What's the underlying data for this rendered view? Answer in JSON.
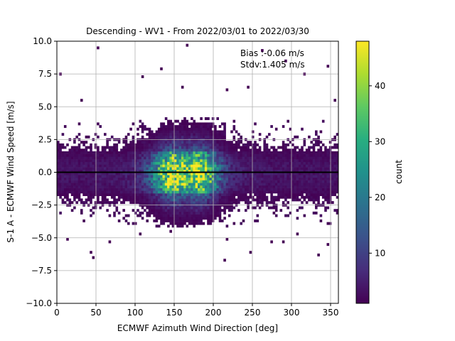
{
  "chart_data": {
    "type": "heatmap",
    "title": "Descending - WV1 - From 2022/03/01 to 2022/03/30",
    "xlabel": "ECMWF Azimuth Wind Direction [deg]",
    "ylabel": "S-1 A - ECMWF Wind Speed [m/s]",
    "xlim": [
      0,
      360
    ],
    "ylim": [
      -10,
      10
    ],
    "x_ticks": [
      0,
      50,
      100,
      150,
      200,
      250,
      300,
      350
    ],
    "y_ticks": [
      -10.0,
      -7.5,
      -5.0,
      -2.5,
      0.0,
      2.5,
      5.0,
      7.5,
      10.0
    ],
    "x_tick_labels": [
      "0",
      "50",
      "100",
      "150",
      "200",
      "250",
      "300",
      "350"
    ],
    "y_tick_labels": [
      "−10.0",
      "−7.5",
      "−5.0",
      "−2.5",
      "0.0",
      "2.5",
      "5.0",
      "7.5",
      "10.0"
    ],
    "grid": true,
    "colormap": "viridis",
    "colorbar": {
      "label": "count",
      "min": 1,
      "max": 48,
      "ticks": [
        10,
        20,
        30,
        40
      ],
      "tick_labels": [
        "10",
        "20",
        "30",
        "40"
      ]
    },
    "annotations": [
      "Bias :-0.06 m/s",
      "Stdv:1.405 m/s"
    ],
    "reference_line": {
      "y": 0.0,
      "color": "#000000"
    },
    "bin_size": {
      "x_deg": 3,
      "y_ms": 0.2
    },
    "density_model": {
      "description": "counts concentrated along y near 0, peak ~48 at 150-190 deg",
      "peak_count": 48,
      "peak_centers_deg": [
        152,
        180
      ],
      "spread_y_ms": 1.3
    },
    "outliers": [
      [
        3,
        7.6
      ],
      [
        52,
        9.4
      ],
      [
        108,
        7.3
      ],
      [
        132,
        7.8
      ],
      [
        165,
        9.7
      ],
      [
        292,
        8.5
      ],
      [
        317,
        7.6
      ],
      [
        345,
        8.0
      ],
      [
        263,
        9.3
      ],
      [
        160,
        6.6
      ],
      [
        243,
        6.6
      ],
      [
        218,
        6.2
      ],
      [
        30,
        5.5
      ],
      [
        355,
        5.6
      ],
      [
        12,
        -5.1
      ],
      [
        42,
        -6.2
      ],
      [
        45,
        -6.5
      ],
      [
        68,
        -5.3
      ],
      [
        107,
        -4.7
      ],
      [
        145,
        -4.5
      ],
      [
        218,
        -5.1
      ],
      [
        215,
        -6.8
      ],
      [
        247,
        -6.2
      ],
      [
        275,
        -5.3
      ],
      [
        290,
        -5.3
      ],
      [
        335,
        -6.3
      ],
      [
        345,
        -5.5
      ],
      [
        307,
        -4.7
      ]
    ]
  }
}
